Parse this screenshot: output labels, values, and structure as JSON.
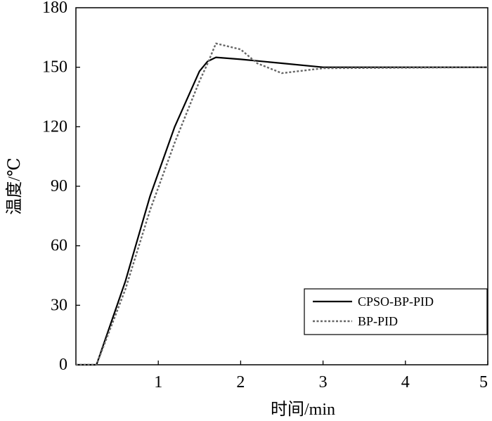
{
  "chart_data": {
    "type": "line",
    "xlabel": "时间/min",
    "ylabel": "温度/℃",
    "xlim": [
      0,
      5
    ],
    "ylim": [
      0,
      180
    ],
    "x_ticks": [
      1,
      2,
      3,
      4,
      5
    ],
    "y_ticks": [
      0,
      30,
      60,
      90,
      120,
      150,
      180
    ],
    "x_tick_labels": [
      "1",
      "2",
      "3",
      "4",
      "5"
    ],
    "y_tick_labels": [
      "0",
      "30",
      "60",
      "90",
      "120",
      "150",
      "180"
    ],
    "grid": false,
    "legend_position": "bottom-right",
    "series": [
      {
        "name": "CPSO-BP-PID",
        "style": "solid",
        "color": "#000000",
        "points": [
          [
            0,
            0
          ],
          [
            0.25,
            0
          ],
          [
            0.6,
            42
          ],
          [
            0.9,
            85
          ],
          [
            1.2,
            120
          ],
          [
            1.5,
            148
          ],
          [
            1.6,
            153
          ],
          [
            1.7,
            155
          ],
          [
            2.0,
            154
          ],
          [
            2.5,
            152
          ],
          [
            3.0,
            150
          ],
          [
            5.0,
            150
          ]
        ]
      },
      {
        "name": "BP-PID",
        "style": "dotted",
        "color": "#666666",
        "points": [
          [
            0,
            0
          ],
          [
            0.25,
            0
          ],
          [
            0.6,
            38
          ],
          [
            0.9,
            78
          ],
          [
            1.2,
            112
          ],
          [
            1.5,
            143
          ],
          [
            1.6,
            152
          ],
          [
            1.7,
            162
          ],
          [
            2.0,
            159
          ],
          [
            2.2,
            152
          ],
          [
            2.5,
            147
          ],
          [
            3.0,
            149.5
          ],
          [
            5.0,
            150
          ]
        ]
      }
    ]
  }
}
